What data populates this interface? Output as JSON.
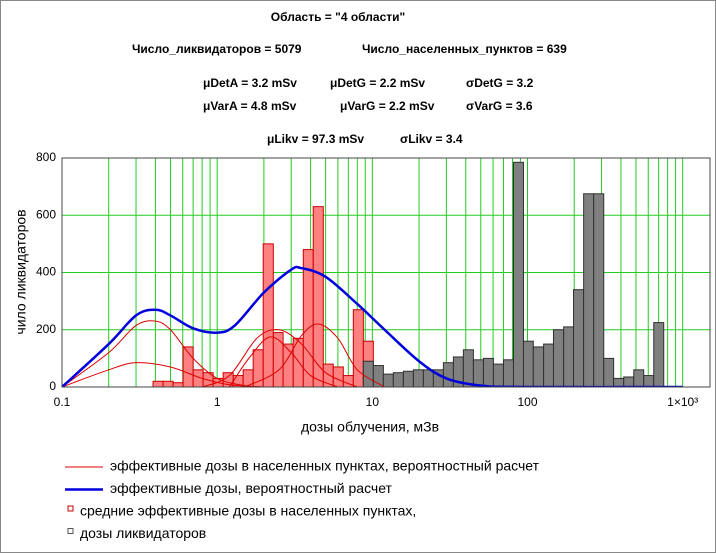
{
  "chart_data": {
    "type": "histogram",
    "annotations": [
      "Область = \"4 области\"",
      "Число_ликвидаторов = 5079",
      "Число_населенных_пунктов = 639",
      "μDetA = 3.2 mSv",
      "μDetG = 2.2 mSv",
      "σDetG = 3.2",
      "μVarA = 4.8 mSv",
      "μVarG = 2.2 mSv",
      "σVarG = 3.6",
      "μLikv = 97.3 mSv",
      "σLikv = 3.4"
    ],
    "xlabel": "дозы облучения,  мЗв",
    "ylabel": "чило ликвидаторов",
    "xscale": "log",
    "xlim": [
      0.1,
      1500
    ],
    "xticks": [
      0.1,
      1,
      10,
      100,
      {
        "value": 1000,
        "label": "1×10³"
      }
    ],
    "ylim": [
      0,
      800
    ],
    "yticks": [
      0,
      200,
      400,
      600,
      800
    ],
    "grid": true,
    "grid_color": "#22cc22",
    "series": [
      {
        "name": "эффективные дозы в населенных пунктах, вероятностный расчет",
        "type": "line",
        "color": "#e00000",
        "lines": [
          {
            "x": [
              0.1,
              0.2,
              0.3,
              0.4,
              0.5,
              0.7,
              1,
              1.5,
              2
            ],
            "values": [
              0,
              120,
              215,
              230,
              200,
              100,
              30,
              5,
              0
            ]
          },
          {
            "x": [
              0.1,
              0.2,
              0.3,
              0.5,
              0.8,
              1.2,
              2
            ],
            "values": [
              0,
              60,
              85,
              70,
              30,
              8,
              0
            ]
          },
          {
            "x": [
              0.8,
              1.2,
              1.8,
              2.5,
              3.5,
              5,
              8
            ],
            "values": [
              0,
              40,
              170,
              200,
              150,
              50,
              0
            ]
          },
          {
            "x": [
              1.5,
              2.5,
              3.5,
              4.5,
              6,
              8,
              12
            ],
            "values": [
              0,
              60,
              180,
              220,
              170,
              60,
              0
            ]
          },
          {
            "x": [
              1.2,
              1.6,
              2.2,
              3,
              4,
              6
            ],
            "values": [
              0,
              100,
              175,
              120,
              40,
              0
            ]
          }
        ]
      },
      {
        "name": "эффективные дозы, вероятностный расчет",
        "type": "line",
        "color": "#0000dd",
        "x": [
          0.1,
          0.2,
          0.3,
          0.4,
          0.5,
          0.7,
          1,
          1.3,
          2,
          3,
          3.5,
          5,
          8,
          12,
          20,
          30,
          50,
          100,
          1000
        ],
        "values": [
          0,
          150,
          250,
          270,
          250,
          205,
          190,
          215,
          330,
          410,
          415,
          385,
          290,
          200,
          90,
          30,
          5,
          0,
          0
        ]
      },
      {
        "name": "средние эффективные дозы в населенных пунктах,",
        "type": "bar",
        "color": "#ff8080",
        "edge": "#cc0000",
        "bins": [
          0.386,
          0.448,
          0.52,
          0.603,
          0.7,
          0.812,
          0.942,
          1.093,
          1.268,
          1.471,
          1.706,
          1.98,
          2.3,
          2.66,
          3.09,
          3.59,
          4.16,
          4.83,
          5.6,
          6.5,
          7.54,
          8.75,
          10.15
        ],
        "values": [
          20,
          20,
          15,
          140,
          60,
          50,
          30,
          50,
          40,
          60,
          130,
          500,
          190,
          150,
          170,
          480,
          630,
          80,
          70,
          40,
          270,
          160
        ]
      },
      {
        "name": "дозы ликвидаторов",
        "type": "bar",
        "color": "#808080",
        "edge": "#303030",
        "bins": [
          8.75,
          10.15,
          11.78,
          13.66,
          15.85,
          18.39,
          21.33,
          24.74,
          28.7,
          33.3,
          38.6,
          44.8,
          52,
          60.3,
          70,
          81.2,
          94.2,
          109,
          127,
          147,
          171,
          198,
          230,
          267,
          310,
          359,
          417,
          484,
          561,
          651,
          755
        ],
        "values": [
          90,
          75,
          45,
          50,
          55,
          60,
          60,
          60,
          85,
          105,
          130,
          95,
          100,
          80,
          95,
          785,
          160,
          140,
          150,
          200,
          210,
          340,
          675,
          675,
          100,
          30,
          35,
          60,
          40,
          225
        ]
      }
    ]
  }
}
